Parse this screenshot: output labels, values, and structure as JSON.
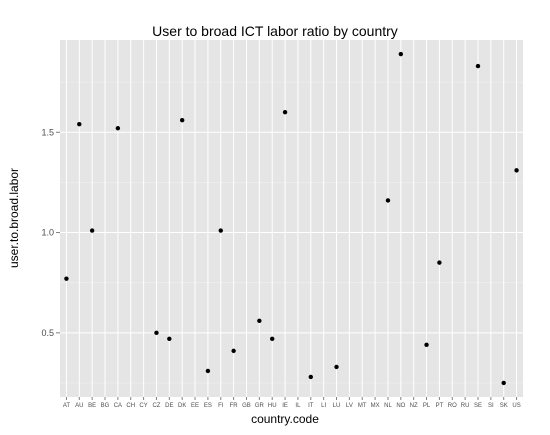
{
  "chart_data": {
    "type": "scatter",
    "title": "User to broad ICT labor ratio by country",
    "xlabel": "country.code",
    "ylabel": "user.to.broad.labor",
    "categories": [
      "AT",
      "AU",
      "BE",
      "BG",
      "CA",
      "CH",
      "CY",
      "CZ",
      "DE",
      "DK",
      "EE",
      "ES",
      "FI",
      "FR",
      "GB",
      "GR",
      "HU",
      "IE",
      "IL",
      "IT",
      "LI",
      "LU",
      "LV",
      "MT",
      "MX",
      "NL",
      "NO",
      "NZ",
      "PL",
      "PT",
      "RO",
      "RU",
      "SE",
      "SI",
      "SK",
      "US"
    ],
    "yticks": [
      0.5,
      1.0,
      1.5
    ],
    "ytick_labels": [
      "0.5",
      "1.0",
      "1.5"
    ],
    "ylim": [
      0.18,
      1.96
    ],
    "grid": true,
    "points": [
      {
        "x": "AT",
        "y": 0.77
      },
      {
        "x": "AU",
        "y": 1.54
      },
      {
        "x": "BE",
        "y": 1.01
      },
      {
        "x": "CA",
        "y": 1.52
      },
      {
        "x": "CZ",
        "y": 0.5
      },
      {
        "x": "DE",
        "y": 0.47
      },
      {
        "x": "DK",
        "y": 1.56
      },
      {
        "x": "ES",
        "y": 0.31
      },
      {
        "x": "FI",
        "y": 1.01
      },
      {
        "x": "FR",
        "y": 0.41
      },
      {
        "x": "GR",
        "y": 0.56
      },
      {
        "x": "HU",
        "y": 0.47
      },
      {
        "x": "IE",
        "y": 1.6
      },
      {
        "x": "IT",
        "y": 0.28
      },
      {
        "x": "LU",
        "y": 0.33
      },
      {
        "x": "NL",
        "y": 1.16
      },
      {
        "x": "NO",
        "y": 1.89
      },
      {
        "x": "PL",
        "y": 0.44
      },
      {
        "x": "PT",
        "y": 0.85
      },
      {
        "x": "SE",
        "y": 1.83
      },
      {
        "x": "SK",
        "y": 0.25
      },
      {
        "x": "US",
        "y": 1.31
      }
    ],
    "colors": {
      "panel_background": "#e5e5e5",
      "grid_major": "#ffffff",
      "grid_minor": "#f2f2f2",
      "point": "#000000",
      "tick_text": "#4d4d4d"
    }
  }
}
